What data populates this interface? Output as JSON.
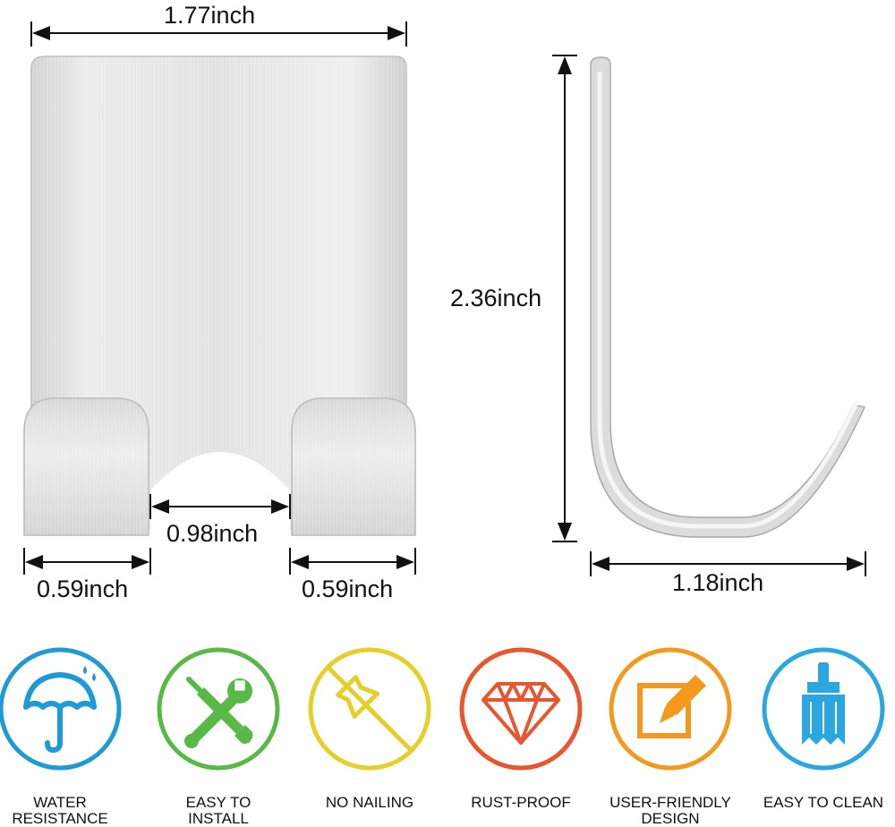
{
  "dimensions": {
    "plate_width": "1.77inch",
    "hook_left_width": "0.59inch",
    "gap_width": "0.98inch",
    "hook_right_width": "0.59inch",
    "side_height": "2.36inch",
    "side_depth": "1.18inch"
  },
  "features": [
    {
      "label_line1": "WATER",
      "label_line2": "RESISTANCE",
      "icon": "umbrella-icon",
      "color": "#1e9ad6"
    },
    {
      "label_line1": "EASY TO",
      "label_line2": "INSTALL",
      "icon": "tools-icon",
      "color": "#58b947"
    },
    {
      "label_line1": "NO NAILING",
      "label_line2": "",
      "icon": "no-pushpin-icon",
      "color": "#e6cf2a"
    },
    {
      "label_line1": "RUST-PROOF",
      "label_line2": "",
      "icon": "diamond-icon",
      "color": "#e8562f"
    },
    {
      "label_line1": "USER-FRIENDLY",
      "label_line2": "DESIGN",
      "icon": "edit-note-icon",
      "color": "#f39a1e"
    },
    {
      "label_line1": "EASY TO CLEAN",
      "label_line2": "",
      "icon": "paintbrush-icon",
      "color": "#2aa7e1"
    }
  ],
  "colors": {
    "metal_light": "#e9e9e9",
    "metal_dark": "#b5b5b5",
    "dimension_line": "#111111"
  }
}
